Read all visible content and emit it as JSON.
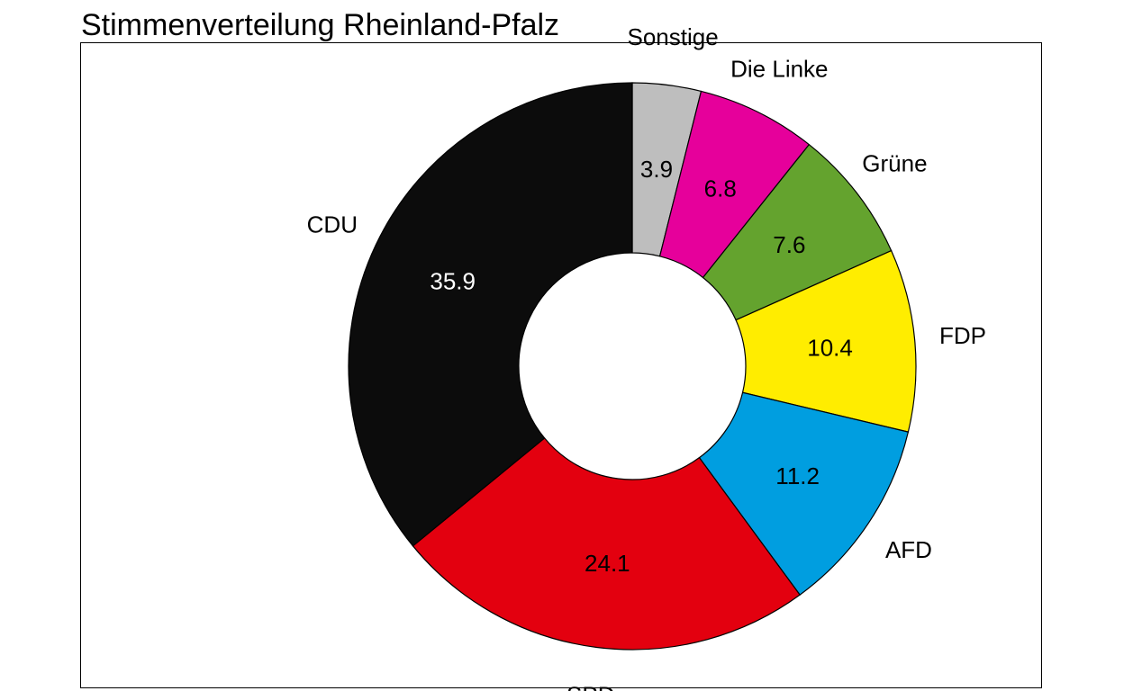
{
  "chart_data": {
    "type": "pie",
    "style": "donut",
    "title": "Stimmenverteilung Rheinland-Pfalz",
    "start": "12 o'clock",
    "direction": "clockwise",
    "slices": [
      {
        "label": "Sonstige",
        "value": 3.9,
        "value_label": "3.9",
        "color": "#bebebe",
        "text_color": "#000000"
      },
      {
        "label": "Die Linke",
        "value": 6.8,
        "value_label": "6.8",
        "color": "#e6009b",
        "text_color": "#000000"
      },
      {
        "label": "Grüne",
        "value": 7.6,
        "value_label": "7.6",
        "color": "#64a32e",
        "text_color": "#000000"
      },
      {
        "label": "FDP",
        "value": 10.4,
        "value_label": "10.4",
        "color": "#ffed00",
        "text_color": "#000000"
      },
      {
        "label": "AFD",
        "value": 11.2,
        "value_label": "11.2",
        "color": "#009ee0",
        "text_color": "#000000"
      },
      {
        "label": "SPD",
        "value": 24.1,
        "value_label": "24.1",
        "color": "#e3000f",
        "text_color": "#000000"
      },
      {
        "label": "CDU",
        "value": 35.9,
        "value_label": "35.9",
        "color": "#0c0c0c",
        "text_color": "#ffffff"
      }
    ]
  }
}
